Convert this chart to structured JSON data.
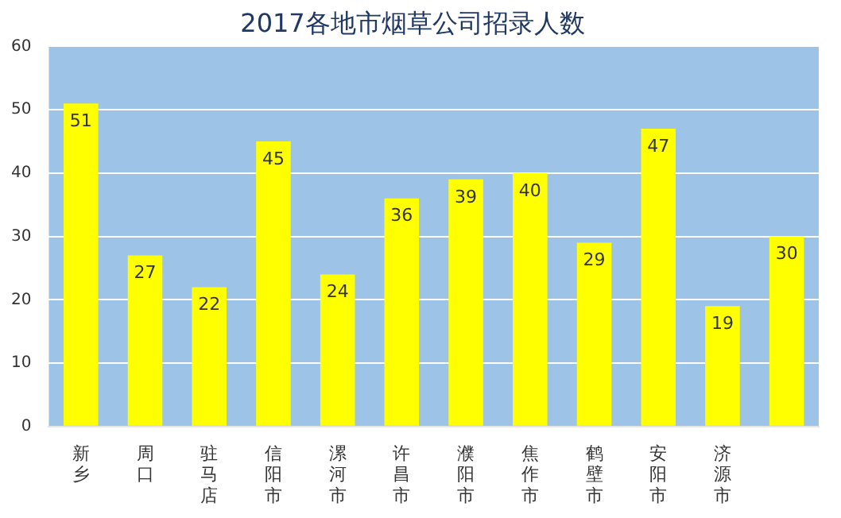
{
  "chart_data": {
    "type": "bar",
    "title": "2017各地市烟草公司招录人数",
    "categories": [
      "新乡",
      "周口",
      "驻马店",
      "信阳市",
      "漯河市",
      "许昌市",
      "濮阳市",
      "焦作市",
      "鹤壁市",
      "安阳市",
      "济源市",
      null
    ],
    "values": [
      51,
      27,
      22,
      45,
      24,
      36,
      39,
      40,
      29,
      47,
      19,
      30
    ],
    "color": "#ffff00",
    "ylim": [
      0,
      60
    ],
    "yticks": [
      0,
      10,
      20,
      30,
      40,
      50,
      60
    ],
    "grid": "y",
    "data_labels": true,
    "legend": false
  }
}
